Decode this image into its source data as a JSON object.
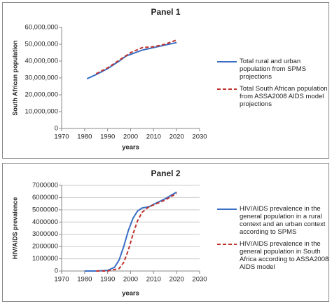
{
  "chart_data": [
    {
      "type": "line",
      "title": "Panel 1",
      "y_label": "South African population",
      "x_label": "years",
      "xlim": [
        1970,
        2030
      ],
      "xticks": [
        1970,
        1980,
        1990,
        2000,
        2010,
        2020,
        2030
      ],
      "ylim": [
        0,
        60000000
      ],
      "yticks": [
        0,
        {
          "value": 10000000,
          "label": "10,000,000"
        },
        {
          "value": 20000000,
          "label": "20,000,000"
        },
        {
          "value": 30000000,
          "label": "30,000,000"
        },
        {
          "value": 40000000,
          "label": "40,000,000"
        },
        {
          "value": 50000000,
          "label": "50,000,000"
        },
        {
          "value": 60000000,
          "label": "60,000,000"
        }
      ],
      "grid": false,
      "legend": "right",
      "series": [
        {
          "name": "Total rural and urban population from SPMS projections",
          "color": "#3a6fc4",
          "dashed": false,
          "x": [
            1981,
            1985,
            1990,
            1995,
            1998,
            2000,
            2005,
            2010,
            2015,
            2020
          ],
          "values": [
            29500000,
            32000000,
            35500000,
            40000000,
            43000000,
            44000000,
            46500000,
            48000000,
            49500000,
            51000000
          ]
        },
        {
          "name": "Total South African population  from ASSA2008 AIDS model projections",
          "color": "#c0302b",
          "dashed": true,
          "x": [
            1985,
            1990,
            1995,
            2000,
            2005,
            2010,
            2015,
            2020
          ],
          "values": [
            32500000,
            36000000,
            40500000,
            45000000,
            48000000,
            48500000,
            50000000,
            52500000
          ]
        }
      ]
    },
    {
      "type": "line",
      "title": "Panel 2",
      "y_label": "HIV/AIDS prevalence",
      "x_label": "years",
      "xlim": [
        1970,
        2030
      ],
      "xticks": [
        1970,
        1980,
        1990,
        2000,
        2010,
        2020,
        2030
      ],
      "ylim": [
        0,
        7000000
      ],
      "yticks": [
        0,
        1000000,
        2000000,
        3000000,
        4000000,
        5000000,
        6000000,
        7000000
      ],
      "grid": true,
      "legend": "right",
      "series": [
        {
          "name": "HIV/AIDS prevalence in  the general population in a rural context and an urban context  according to  SPMS",
          "color": "#3a6fc4",
          "dashed": false,
          "x": [
            1980,
            1985,
            1990,
            1993,
            1995,
            1997,
            1999,
            2001,
            2003,
            2005,
            2008,
            2010,
            2015,
            2020
          ],
          "values": [
            0,
            0,
            50000,
            300000,
            900000,
            2000000,
            3300000,
            4300000,
            4900000,
            5150000,
            5250000,
            5450000,
            5900000,
            6450000
          ]
        },
        {
          "name": "HIV/AIDS prevalence in  the general population in  South Africa  according to ASSA2008 AIDS model",
          "color": "#c0302b",
          "dashed": true,
          "x": [
            1985,
            1990,
            1995,
            1997,
            1999,
            2001,
            2003,
            2005,
            2008,
            2010,
            2015,
            2020
          ],
          "values": [
            0,
            0,
            200000,
            700000,
            1700000,
            3000000,
            4100000,
            4800000,
            5250000,
            5400000,
            5800000,
            6350000
          ]
        }
      ]
    }
  ]
}
